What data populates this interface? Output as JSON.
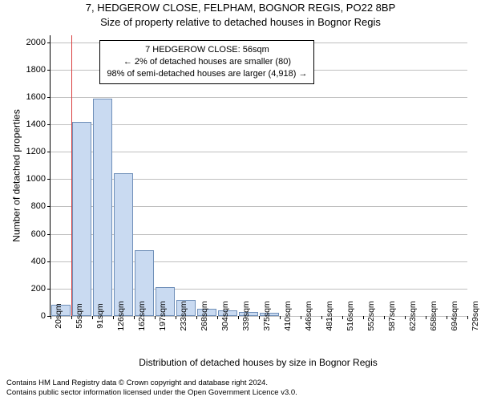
{
  "title_main": "7, HEDGEROW CLOSE, FELPHAM, BOGNOR REGIS, PO22 8BP",
  "title_sub": "Size of property relative to detached houses in Bognor Regis",
  "infobox": {
    "line1": "7 HEDGEROW CLOSE: 56sqm",
    "line2": "← 2% of detached houses are smaller (80)",
    "line3": "98% of semi-detached houses are larger (4,918) →"
  },
  "chart": {
    "type": "histogram",
    "ylabel": "Number of detached properties",
    "xlabel": "Distribution of detached houses by size in Bognor Regis",
    "label_fontsize": 12,
    "ylim": [
      0,
      2050
    ],
    "yticks": [
      0,
      200,
      400,
      600,
      800,
      1000,
      1200,
      1400,
      1600,
      1800,
      2000
    ],
    "grid_color": "#bfbfbf",
    "background_color": "#ffffff",
    "bar_fill": "#c9daf1",
    "bar_border": "#6f8fb8",
    "marker_color": "#d94040",
    "marker_value": 56,
    "x_start": 20,
    "x_step": 35.45,
    "x_labels": [
      "20sqm",
      "55sqm",
      "91sqm",
      "126sqm",
      "162sqm",
      "197sqm",
      "233sqm",
      "268sqm",
      "304sqm",
      "339sqm",
      "375sqm",
      "410sqm",
      "446sqm",
      "481sqm",
      "516sqm",
      "552sqm",
      "587sqm",
      "623sqm",
      "658sqm",
      "694sqm",
      "729sqm"
    ],
    "values": [
      80,
      1420,
      1590,
      1040,
      480,
      210,
      120,
      50,
      40,
      30,
      25,
      0,
      0,
      0,
      0,
      0,
      0,
      0,
      0,
      0
    ]
  },
  "footer_line1": "Contains HM Land Registry data © Crown copyright and database right 2024.",
  "footer_line2": "Contains public sector information licensed under the Open Government Licence v3.0."
}
